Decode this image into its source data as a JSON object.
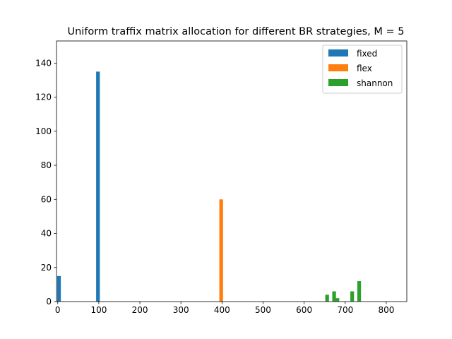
{
  "chart_data": {
    "type": "bar",
    "title": "Uniform traffix matrix allocation for different BR strategies, M = 5",
    "xlabel": "",
    "ylabel": "",
    "xlim": [
      -3,
      850
    ],
    "ylim": [
      0,
      153
    ],
    "xticks": [
      0,
      100,
      200,
      300,
      400,
      500,
      600,
      700,
      800
    ],
    "yticks": [
      0,
      20,
      40,
      60,
      80,
      100,
      120,
      140
    ],
    "bar_width": 9,
    "legend_position": "top-right",
    "series": [
      {
        "name": "fixed",
        "color": "#1f77b4",
        "bars": [
          {
            "x": 3,
            "value": 15
          },
          {
            "x": 98,
            "value": 135
          }
        ]
      },
      {
        "name": "flex",
        "color": "#ff7f0e",
        "bars": [
          {
            "x": 398,
            "value": 60
          }
        ]
      },
      {
        "name": "shannon",
        "color": "#2ca02c",
        "bars": [
          {
            "x": 656,
            "value": 4
          },
          {
            "x": 673,
            "value": 6
          },
          {
            "x": 681,
            "value": 2
          },
          {
            "x": 717,
            "value": 6
          },
          {
            "x": 734,
            "value": 12
          }
        ]
      }
    ]
  }
}
